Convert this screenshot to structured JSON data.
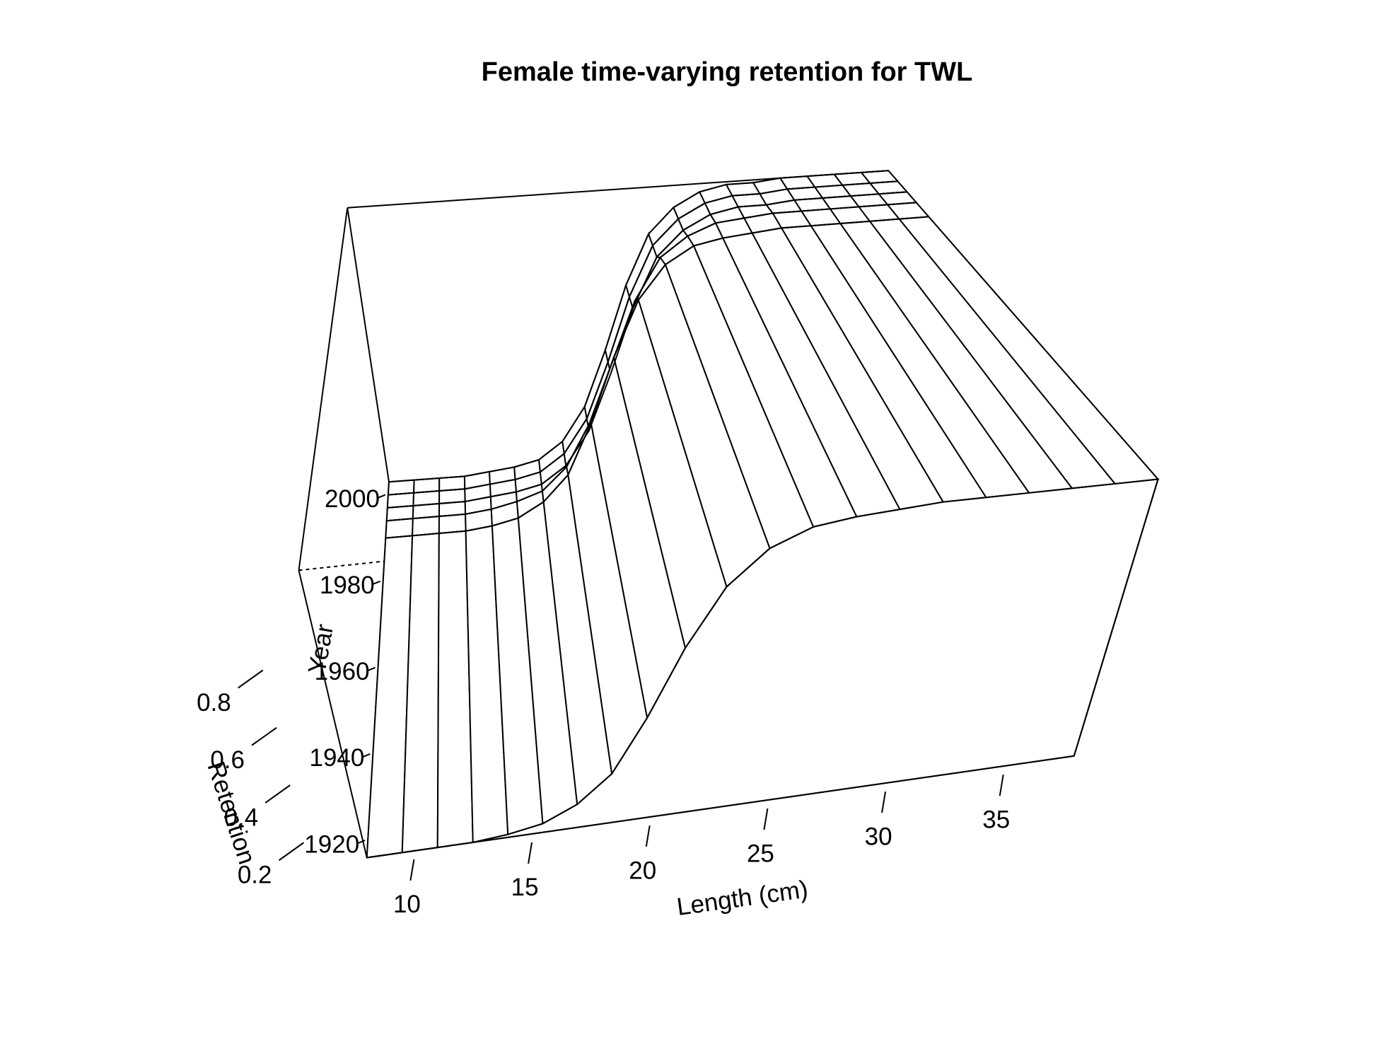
{
  "chart_data": {
    "type": "surface",
    "title": "Female time-varying retention for TWL",
    "xlabel": "Length (cm)",
    "ylabel": "Year",
    "zlabel": "Retention",
    "x": [
      8,
      9.5,
      11,
      12.5,
      14,
      15.5,
      17,
      18.5,
      20,
      21.5,
      23,
      24.5,
      26,
      27.5,
      29,
      30.5,
      32,
      33.5,
      35,
      36.5,
      38
    ],
    "y": [
      1916,
      1990,
      1994,
      1997,
      2000,
      2003
    ],
    "values": [
      [
        0,
        0,
        0,
        0,
        0.01,
        0.03,
        0.08,
        0.17,
        0.35,
        0.58,
        0.78,
        0.9,
        0.96,
        0.98,
        0.99,
        1,
        1,
        1,
        1,
        1,
        1
      ],
      [
        0,
        0,
        0,
        0,
        0.01,
        0.03,
        0.08,
        0.17,
        0.35,
        0.58,
        0.78,
        0.9,
        0.96,
        0.98,
        0.99,
        1,
        1,
        1,
        1,
        1,
        1
      ],
      [
        0,
        0,
        0,
        0,
        0.01,
        0.03,
        0.06,
        0.14,
        0.29,
        0.5,
        0.72,
        0.87,
        0.94,
        0.98,
        0.99,
        1,
        1,
        1,
        1,
        1,
        1
      ],
      [
        0,
        0,
        0,
        0,
        0.01,
        0.02,
        0.04,
        0.1,
        0.22,
        0.42,
        0.65,
        0.83,
        0.92,
        0.97,
        0.99,
        0.99,
        1,
        1,
        1,
        1,
        1
      ],
      [
        0,
        0,
        0,
        0,
        0.01,
        0.02,
        0.04,
        0.1,
        0.22,
        0.42,
        0.65,
        0.83,
        0.92,
        0.97,
        0.99,
        0.99,
        1,
        1,
        1,
        1,
        1
      ],
      [
        0,
        0,
        0,
        0,
        0.01,
        0.02,
        0.04,
        0.1,
        0.22,
        0.42,
        0.65,
        0.83,
        0.92,
        0.97,
        0.99,
        0.99,
        1,
        1,
        1,
        1,
        1
      ]
    ],
    "xlim": [
      8,
      38
    ],
    "ylim": [
      1916,
      2003
    ],
    "zlim": [
      0,
      1
    ],
    "xticks": [
      10,
      15,
      20,
      25,
      30,
      35
    ],
    "yticks": [
      1920,
      1940,
      1960,
      1980,
      2000
    ],
    "zticks": [
      0.2,
      0.4,
      0.6,
      0.8
    ]
  }
}
